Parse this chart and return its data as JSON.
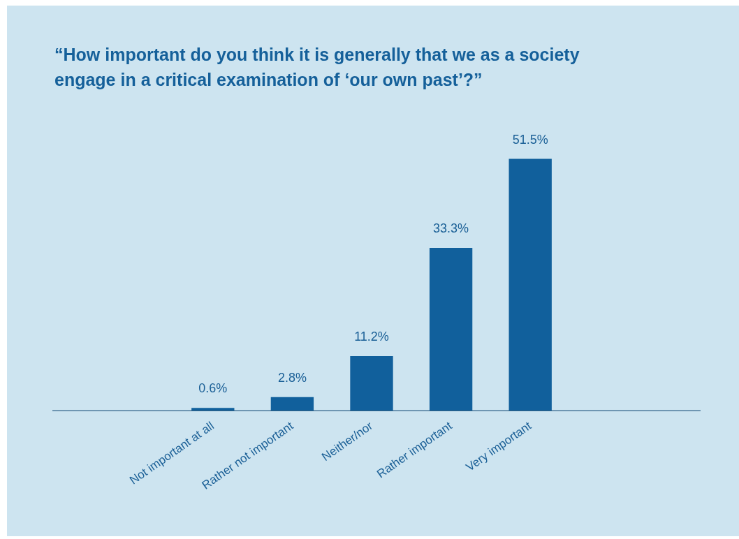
{
  "chart_data": {
    "type": "bar",
    "title": "“How important do you think it is generally that we as a society engage in a critical examination of ‘our own past’?”",
    "categories": [
      "Not important at all",
      "Rather not important",
      "Neither/nor",
      "Rather important",
      "Very important"
    ],
    "values": [
      0.6,
      2.8,
      11.2,
      33.3,
      51.5
    ],
    "value_labels": [
      "0.6%",
      "2.8%",
      "11.2%",
      "33.3%",
      "51.5%"
    ],
    "color": "#11609c",
    "tick_labels": "x"
  }
}
